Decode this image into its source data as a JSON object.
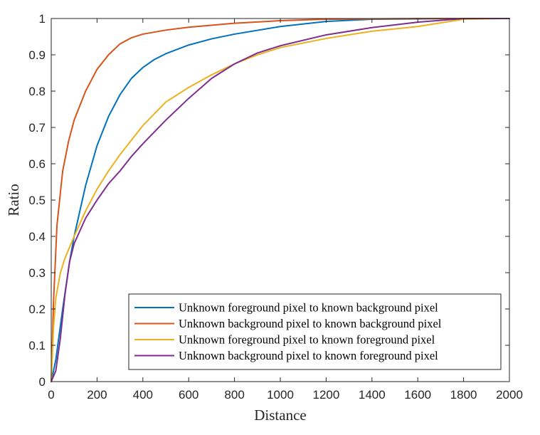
{
  "chart_data": {
    "type": "line",
    "title": "",
    "xlabel": "Distance",
    "ylabel": "Ratio",
    "xlim": [
      0,
      2000
    ],
    "ylim": [
      0,
      1
    ],
    "xticks": [
      0,
      200,
      400,
      600,
      800,
      1000,
      1200,
      1400,
      1600,
      1800,
      2000
    ],
    "yticks": [
      0,
      0.1,
      0.2,
      0.3,
      0.4,
      0.5,
      0.6,
      0.7,
      0.8,
      0.9,
      1
    ],
    "xtick_labels": [
      "0",
      "200",
      "400",
      "600",
      "800",
      "1000",
      "1200",
      "1400",
      "1600",
      "1800",
      "2000"
    ],
    "ytick_labels": [
      "0",
      "0.1",
      "0.2",
      "0.3",
      "0.4",
      "0.5",
      "0.6",
      "0.7",
      "0.8",
      "0.9",
      "1"
    ],
    "grid": false,
    "legend_position": "bottom-right",
    "series": [
      {
        "name": "Unknown foreground pixel to known background pixel",
        "color": "#0072BD",
        "x": [
          0,
          20,
          50,
          80,
          100,
          150,
          200,
          250,
          300,
          350,
          400,
          450,
          500,
          600,
          700,
          800,
          1000,
          1200,
          1400,
          1600,
          1800,
          2000
        ],
        "y": [
          0,
          0.06,
          0.2,
          0.33,
          0.4,
          0.54,
          0.65,
          0.73,
          0.79,
          0.835,
          0.865,
          0.887,
          0.903,
          0.927,
          0.944,
          0.957,
          0.978,
          0.992,
          0.998,
          0.999,
          1.0,
          1.0
        ]
      },
      {
        "name": "Unknown background pixel to known background pixel",
        "color": "#D95319",
        "x": [
          0,
          10,
          25,
          50,
          75,
          100,
          150,
          200,
          250,
          300,
          350,
          400,
          500,
          600,
          800,
          1000,
          1200,
          1400,
          1600,
          1800,
          2000
        ],
        "y": [
          0,
          0.22,
          0.43,
          0.58,
          0.66,
          0.72,
          0.8,
          0.86,
          0.9,
          0.93,
          0.947,
          0.957,
          0.968,
          0.976,
          0.987,
          0.994,
          0.998,
          0.999,
          1.0,
          1.0,
          1.0
        ]
      },
      {
        "name": "Unknown foreground pixel to known foreground pixel",
        "color": "#EDB120",
        "x": [
          0,
          10,
          20,
          40,
          60,
          80,
          100,
          150,
          200,
          250,
          300,
          350,
          400,
          500,
          600,
          700,
          800,
          900,
          1000,
          1200,
          1400,
          1600,
          1800,
          2000
        ],
        "y": [
          0,
          0.15,
          0.23,
          0.3,
          0.34,
          0.37,
          0.4,
          0.47,
          0.53,
          0.58,
          0.625,
          0.665,
          0.705,
          0.77,
          0.81,
          0.845,
          0.875,
          0.9,
          0.92,
          0.945,
          0.965,
          0.978,
          0.998,
          1.0
        ]
      },
      {
        "name": "Unknown background pixel to known foreground pixel",
        "color": "#7E2F8E",
        "x": [
          0,
          20,
          40,
          60,
          80,
          100,
          150,
          200,
          250,
          300,
          350,
          400,
          500,
          600,
          700,
          800,
          900,
          1000,
          1200,
          1400,
          1600,
          1800,
          2000
        ],
        "y": [
          0,
          0.03,
          0.12,
          0.24,
          0.33,
          0.38,
          0.45,
          0.5,
          0.545,
          0.58,
          0.62,
          0.655,
          0.72,
          0.78,
          0.835,
          0.875,
          0.905,
          0.925,
          0.955,
          0.975,
          0.99,
          1.0,
          1.0
        ]
      }
    ]
  }
}
